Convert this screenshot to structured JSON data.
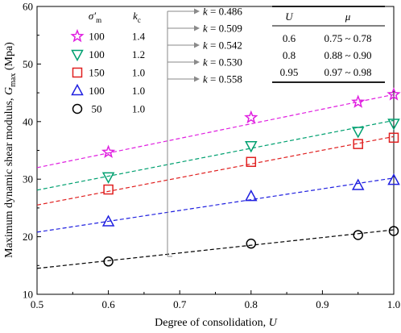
{
  "chart_data": {
    "type": "scatter",
    "xlabel": "Degree of consolidation, U",
    "ylabel": "Maximum dynamic shear modulus, Gmax (Mpa)",
    "xlim": [
      0.5,
      1.0
    ],
    "ylim": [
      10,
      60
    ],
    "xticks": [
      "0.5",
      "0.6",
      "0.7",
      "0.8",
      "0.9",
      "1.0"
    ],
    "yticks": [
      "10",
      "20",
      "30",
      "40",
      "50",
      "60"
    ],
    "grid": false,
    "legend": {
      "placement": "top-left",
      "header_sigma": "σ′m",
      "header_k": "kc"
    },
    "series": [
      {
        "sigma": "100",
        "kc": "1.4",
        "marker": "star",
        "color": "#e020e0",
        "x": [
          0.6,
          0.8,
          0.95,
          1.0
        ],
        "y": [
          34.7,
          40.7,
          43.4,
          44.7
        ],
        "fit": {
          "x": [
            0.5,
            1.0
          ],
          "y": [
            32.0,
            44.7
          ]
        }
      },
      {
        "sigma": "100",
        "kc": "1.2",
        "marker": "triangle-down",
        "color": "#00a070",
        "x": [
          0.6,
          0.8,
          0.95,
          1.0
        ],
        "y": [
          30.4,
          35.8,
          38.3,
          39.7
        ],
        "fit": {
          "x": [
            0.5,
            1.0
          ],
          "y": [
            28.1,
            40.2
          ]
        }
      },
      {
        "sigma": "150",
        "kc": "1.0",
        "marker": "square",
        "color": "#e02020",
        "x": [
          0.6,
          0.8,
          0.95,
          1.0
        ],
        "y": [
          28.2,
          33.0,
          36.1,
          37.2
        ],
        "fit": {
          "x": [
            0.5,
            1.0
          ],
          "y": [
            25.5,
            37.4
          ]
        }
      },
      {
        "sigma": "100",
        "kc": "1.0",
        "marker": "triangle-up",
        "color": "#2020e0",
        "x": [
          0.6,
          0.8,
          0.95,
          1.0
        ],
        "y": [
          22.6,
          27.0,
          28.9,
          29.8
        ],
        "fit": {
          "x": [
            0.5,
            1.0
          ],
          "y": [
            20.8,
            30.2
          ]
        }
      },
      {
        "sigma": "50",
        "kc": "1.0",
        "marker": "circle",
        "color": "#000000",
        "x": [
          0.6,
          0.8,
          0.95,
          1.0
        ],
        "y": [
          15.7,
          18.8,
          20.3,
          21.0
        ],
        "fit": {
          "x": [
            0.5,
            1.0
          ],
          "y": [
            14.5,
            21.2
          ]
        }
      }
    ],
    "k_annotations": [
      "k = 0.486",
      "k = 0.509",
      "k = 0.542",
      "k = 0.530",
      "k = 0.558"
    ],
    "table": {
      "headers": [
        "U",
        "μ"
      ],
      "rows": [
        [
          "0.6",
          "0.75 ~ 0.78"
        ],
        [
          "0.8",
          "0.88 ~ 0.90"
        ],
        [
          "0.95",
          "0.97 ~ 0.98"
        ]
      ]
    }
  }
}
